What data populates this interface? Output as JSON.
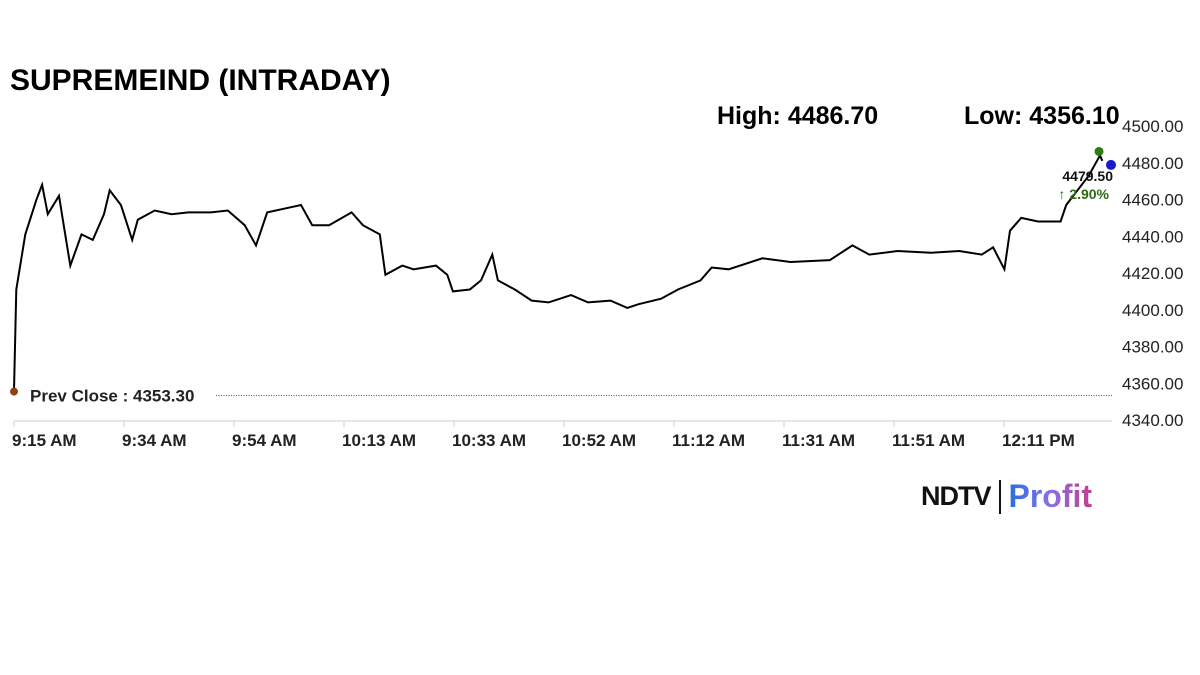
{
  "chart_data": {
    "type": "line",
    "title": "SUPREMEIND (INTRADAY)",
    "high_label": "High: 4486.70",
    "low_label": "Low: 4356.10",
    "x_unit": "minutes since 9:15 AM",
    "x": [
      0,
      0.4,
      1,
      2,
      4,
      5,
      6,
      8,
      9,
      10,
      12,
      14,
      16,
      17,
      19,
      21,
      22,
      25,
      28,
      31,
      35,
      38,
      41,
      43,
      45,
      48,
      51,
      53,
      56,
      60,
      62,
      65,
      66,
      69,
      71,
      75,
      77,
      78,
      81,
      83,
      85,
      86,
      89,
      92,
      95,
      99,
      102,
      106,
      109,
      111,
      115,
      118,
      122,
      124,
      127,
      133,
      138,
      145,
      149,
      152,
      157,
      163,
      168,
      172,
      174,
      176,
      177,
      179,
      182,
      186,
      187,
      191,
      193,
      193.4
    ],
    "y": [
      4356,
      4411,
      4422,
      4441,
      4460,
      4468,
      4452,
      4462,
      4443,
      4424,
      4441,
      4438,
      4452,
      4465,
      4457,
      4438,
      4449,
      4454,
      4452,
      4453,
      4453,
      4454,
      4446,
      4435,
      4453,
      4455,
      4457,
      4446,
      4446,
      4453,
      4446,
      4441,
      4419,
      4424,
      4422,
      4424,
      4419,
      4410,
      4411,
      4416,
      4430,
      4416,
      4411,
      4405,
      4404,
      4408,
      4404,
      4405,
      4401,
      4403,
      4406,
      4411,
      4416,
      4423,
      4422,
      4428,
      4426,
      4427,
      4435,
      4430,
      4432,
      4431,
      4432,
      4430,
      4434,
      4422,
      4443,
      4450,
      4448,
      4448,
      4457,
      4473,
      4484,
      4481
    ],
    "xtick_labels": [
      "9:15 AM",
      "9:34 AM",
      "9:54 AM",
      "10:13 AM",
      "10:33 AM",
      "10:52 AM",
      "11:12 AM",
      "11:31 AM",
      "11:51 AM",
      "12:11 PM"
    ],
    "ytick_labels": [
      "4340.00",
      "4360.00",
      "4380.00",
      "4400.00",
      "4420.00",
      "4440.00",
      "4460.00",
      "4480.00",
      "4500.00"
    ],
    "ylim": [
      4340,
      4500
    ],
    "prev_close": 4353.3,
    "prev_close_label": "Prev Close : 4353.30",
    "last_price_label": "4479.50",
    "change_label": "↑ 2.90%",
    "colors": {
      "line": "#000000",
      "up": "#2e6b12",
      "prev_close": "#8b4513",
      "high_dot": "#2e7d12",
      "last_dot": "#1a1acc"
    }
  },
  "brand": {
    "left": "NDTV",
    "right": "Profit"
  }
}
